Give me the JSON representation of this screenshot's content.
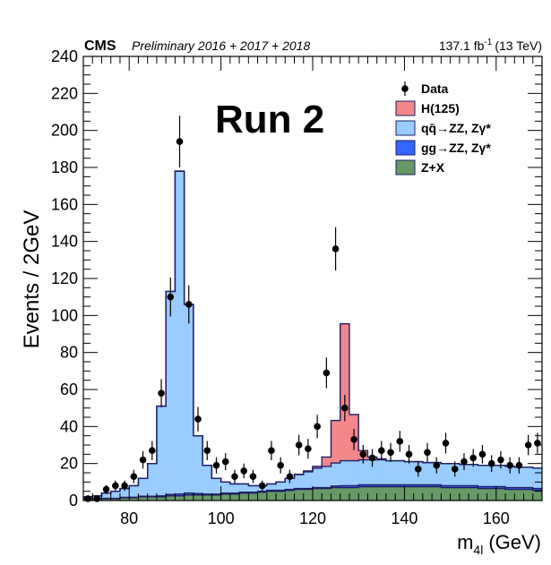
{
  "header": {
    "experiment": "CMS",
    "subtitle": "Preliminary 2016 + 2017 + 2018",
    "luminosity": "137.1 fb",
    "lumi_sup": "-1",
    "energy": "(13 TeV)"
  },
  "colors": {
    "higgs": "#f3878a",
    "qqzz": "#99ccff",
    "ggzz": "#3366ff",
    "zx": "#669966",
    "outline": "#1f1f66",
    "data": "#000000"
  },
  "chart_data": {
    "type": "bar",
    "annotation": "Run 2",
    "xlabel": "m",
    "xlabel_sub": "4l",
    "xlabel_unit": "(GeV)",
    "ylabel": "Events / 2GeV",
    "xlim": [
      70,
      170
    ],
    "ylim": [
      0,
      240
    ],
    "x_ticks": [
      80,
      100,
      120,
      140,
      160
    ],
    "y_ticks": [
      0,
      20,
      40,
      60,
      80,
      100,
      120,
      140,
      160,
      180,
      200,
      220,
      240
    ],
    "bin_width_gev": 2,
    "legend_position": "top-right",
    "legend": [
      {
        "label": "Data",
        "kind": "marker"
      },
      {
        "label": "H(125)",
        "color_key": "higgs"
      },
      {
        "label": "qq̄→ZZ, Zγ*",
        "color_key": "qqzz"
      },
      {
        "label": "gg→ZZ, Zγ*",
        "color_key": "ggzz"
      },
      {
        "label": "Z+X",
        "color_key": "zx"
      }
    ],
    "bin_edges": [
      70,
      72,
      74,
      76,
      78,
      80,
      82,
      84,
      86,
      88,
      90,
      92,
      94,
      96,
      98,
      100,
      102,
      104,
      106,
      108,
      110,
      112,
      114,
      116,
      118,
      120,
      122,
      124,
      126,
      128,
      130,
      132,
      134,
      136,
      138,
      140,
      142,
      144,
      146,
      148,
      150,
      152,
      154,
      156,
      158,
      160,
      162,
      164,
      166,
      168,
      170
    ],
    "stack": [
      {
        "name": "Z+X",
        "color_key": "zx",
        "values": [
          1,
          1,
          1,
          1,
          1.5,
          1.5,
          2,
          2,
          2,
          2.5,
          2.5,
          3,
          3,
          3,
          3,
          3.5,
          3.5,
          4,
          4,
          4.5,
          5,
          5,
          5.5,
          6,
          6,
          6.5,
          6.5,
          7,
          7,
          7,
          7.5,
          7.5,
          7.5,
          7.5,
          7.5,
          7.5,
          7.5,
          7.5,
          7.5,
          7,
          7,
          7,
          7,
          6.5,
          6.5,
          6.5,
          6,
          6,
          6,
          5.5
        ]
      },
      {
        "name": "gg→ZZ, Zγ*",
        "color_key": "ggzz",
        "values": [
          0.2,
          0.2,
          0.2,
          0.2,
          0.2,
          0.3,
          0.3,
          0.3,
          0.5,
          0.8,
          1,
          1,
          0.8,
          0.5,
          0.5,
          0.5,
          0.5,
          0.5,
          0.5,
          0.5,
          0.5,
          0.5,
          0.5,
          0.5,
          0.5,
          0.5,
          0.5,
          0.8,
          1,
          1,
          1,
          1,
          1,
          1,
          1,
          1,
          1,
          1,
          1,
          1,
          1,
          1,
          1,
          1,
          1,
          1,
          1,
          1,
          1,
          1
        ]
      },
      {
        "name": "qq̄→ZZ, Zγ*",
        "color_key": "qqzz",
        "values": [
          0.8,
          1.3,
          2.8,
          3.8,
          4.8,
          6.2,
          9.7,
          17.7,
          48.5,
          109.7,
          174.5,
          102,
          31.2,
          15.5,
          8.5,
          6,
          5,
          4.5,
          3.5,
          3,
          3.5,
          4.5,
          6,
          7.5,
          9,
          10.5,
          11.5,
          12.5,
          13.5,
          13.5,
          13.5,
          13.5,
          13.5,
          13,
          13,
          12.5,
          12.5,
          12,
          12,
          12,
          12,
          11.5,
          11.5,
          11.5,
          11.5,
          11.5,
          11.5,
          11,
          11,
          11
        ]
      },
      {
        "name": "H(125)",
        "color_key": "higgs",
        "values": [
          0,
          0,
          0,
          0,
          0,
          0,
          0,
          0,
          0,
          0,
          0,
          0,
          0,
          0,
          0,
          0,
          0,
          0,
          0,
          0,
          0,
          0,
          0,
          0.2,
          0.5,
          1,
          5,
          23,
          74,
          25,
          5,
          1.5,
          0.5,
          0,
          0,
          0,
          0,
          0,
          0,
          0,
          0,
          0,
          0,
          0,
          0,
          0,
          0,
          0,
          0,
          0
        ]
      }
    ],
    "data_points": {
      "x": [
        71,
        73,
        75,
        77,
        79,
        81,
        83,
        85,
        87,
        89,
        91,
        93,
        95,
        97,
        99,
        101,
        103,
        105,
        107,
        109,
        111,
        113,
        115,
        117,
        119,
        121,
        123,
        125,
        127,
        129,
        131,
        133,
        135,
        137,
        139,
        141,
        143,
        145,
        147,
        149,
        151,
        153,
        155,
        157,
        159,
        161,
        163,
        165,
        167,
        169
      ],
      "y": [
        1,
        1,
        6,
        8,
        8,
        13,
        22,
        27,
        58,
        110,
        194,
        106,
        44,
        27,
        19,
        21,
        13,
        16,
        13,
        8,
        27,
        19,
        13,
        30,
        28,
        40,
        69,
        136,
        50,
        33,
        25,
        23,
        27,
        26,
        32,
        25,
        17,
        26,
        19,
        31,
        17,
        21,
        23,
        25,
        20,
        22,
        19,
        19,
        30,
        31
      ],
      "yerr": [
        1,
        1,
        2.4,
        2.8,
        2.8,
        3.6,
        4.7,
        5.2,
        7.6,
        10.5,
        14,
        10.3,
        6.6,
        5.2,
        4.4,
        4.6,
        3.6,
        4,
        3.6,
        2.8,
        5.2,
        4.4,
        3.6,
        5.5,
        5.3,
        6.3,
        8.3,
        11.7,
        7.1,
        5.7,
        5,
        4.8,
        5.2,
        5.1,
        5.7,
        5,
        4.1,
        5.1,
        4.4,
        5.6,
        4.1,
        4.6,
        4.8,
        5,
        4.5,
        4.7,
        4.4,
        4.4,
        5.5,
        5.6
      ]
    }
  }
}
